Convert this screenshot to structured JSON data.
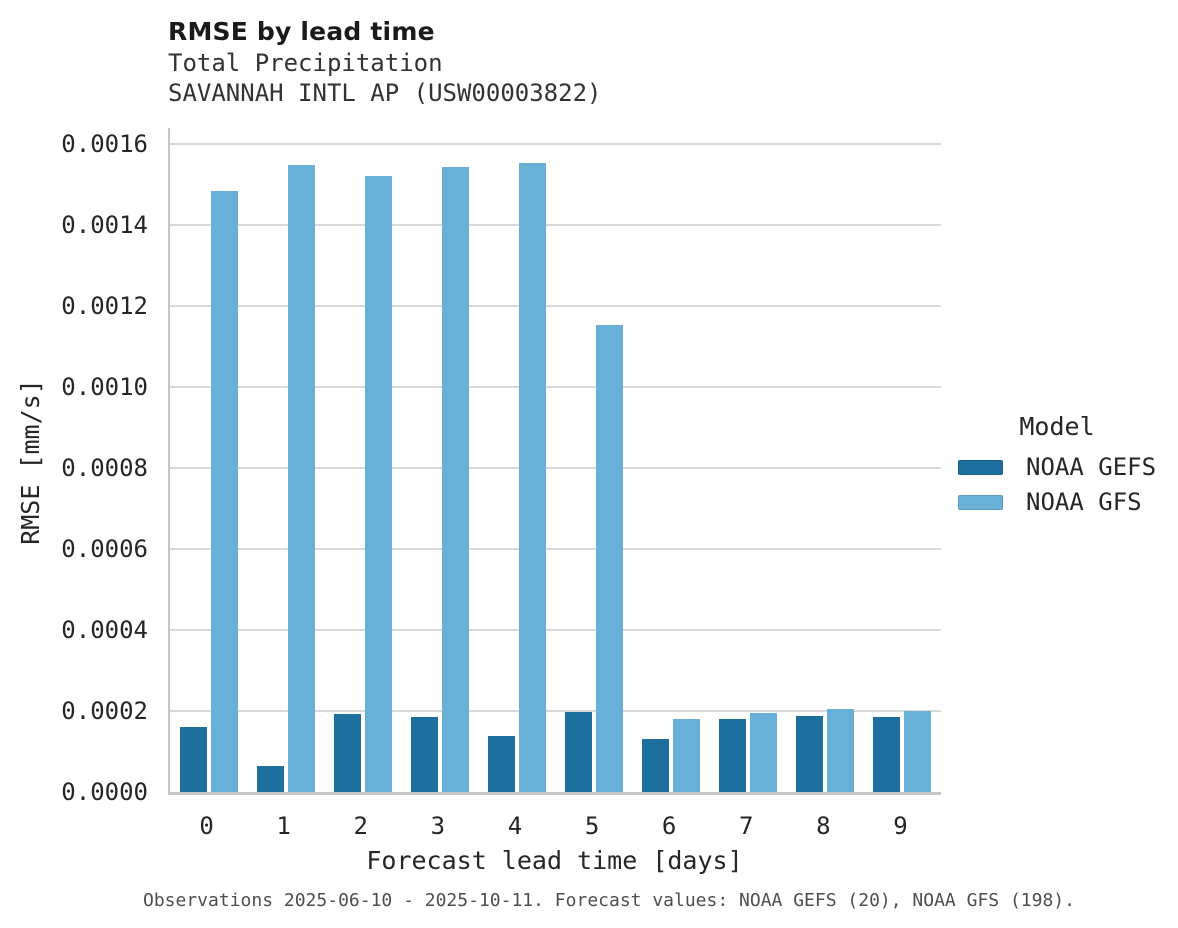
{
  "header": {
    "title": "RMSE by lead time",
    "subtitle1": "Total Precipitation",
    "subtitle2": "SAVANNAH INTL AP (USW00003822)"
  },
  "axes": {
    "x_label": "Forecast lead time [days]",
    "y_label": "RMSE [mm/s]",
    "x_ticks": [
      "0",
      "1",
      "2",
      "3",
      "4",
      "5",
      "6",
      "7",
      "8",
      "9"
    ],
    "y_ticks": [
      "0.0000",
      "0.0002",
      "0.0004",
      "0.0006",
      "0.0008",
      "0.0010",
      "0.0012",
      "0.0014",
      "0.0016"
    ]
  },
  "legend": {
    "title": "Model",
    "items": [
      {
        "label": "NOAA GEFS",
        "color": "#1d6f9e"
      },
      {
        "label": "NOAA GFS",
        "color": "#69b0d7"
      }
    ]
  },
  "caption": {
    "text": "Observations 2025-06-10 - 2025-10-11. Forecast values: NOAA GEFS (20), NOAA GFS (198)."
  },
  "colors": {
    "gefs_bar": "#1d6f9e",
    "gfs_bar": "#69b0d7",
    "gridline": "#d9d9d9",
    "axis_line": "#c6c6c6"
  },
  "chart_data": {
    "type": "bar",
    "title": "RMSE by lead time",
    "subtitle": [
      "Total Precipitation",
      "SAVANNAH INTL AP (USW00003822)"
    ],
    "xlabel": "Forecast lead time [days]",
    "ylabel": "RMSE [mm/s]",
    "categories": [
      0,
      1,
      2,
      3,
      4,
      5,
      6,
      7,
      8,
      9
    ],
    "series": [
      {
        "name": "NOAA GEFS",
        "color": "#1d6f9e",
        "values": [
          0.00016,
          6.5e-05,
          0.000192,
          0.000185,
          0.000137,
          0.000198,
          0.00013,
          0.00018,
          0.000188,
          0.000184
        ]
      },
      {
        "name": "NOAA GFS",
        "color": "#69b0d7",
        "values": [
          0.001482,
          0.001546,
          0.001521,
          0.001543,
          0.001553,
          0.001152,
          0.000179,
          0.000195,
          0.000205,
          0.000201
        ]
      }
    ],
    "ylim": [
      0,
      0.0016385
    ],
    "ytick_values": [
      0.0,
      0.0002,
      0.0004,
      0.0006,
      0.0008,
      0.001,
      0.0012,
      0.0014,
      0.0016
    ],
    "grid": "horizontal",
    "legend_title": "Model",
    "legend_position": "right",
    "caption": "Observations 2025-06-10 - 2025-10-11. Forecast values: NOAA GEFS (20), NOAA GFS (198)."
  }
}
